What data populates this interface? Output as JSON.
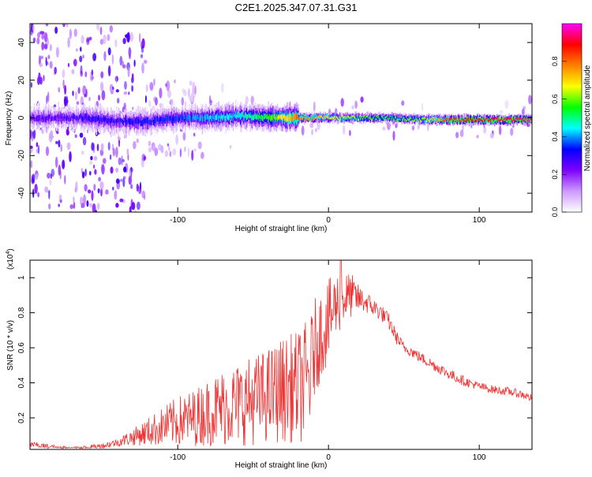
{
  "title": "C2E1.2025.347.07.31.G31",
  "chart_data": [
    {
      "type": "heatmap",
      "xlabel": "Height of straight line (km)",
      "ylabel": "Frequency (Hz)",
      "xlim": [
        -198,
        135
      ],
      "ylim": [
        -50,
        50
      ],
      "xticks": [
        -100,
        0,
        100
      ],
      "yticks": [
        -40,
        -20,
        0,
        20,
        40
      ],
      "colorbar": {
        "label": "Normalized spectral amplitude",
        "ticks": [
          "0.0",
          "0.2",
          "0.4",
          "0.6",
          "0.8"
        ],
        "range": [
          0,
          1
        ],
        "colors": [
          "#ffffff",
          "#cc99ff",
          "#7f00ff",
          "#0000ff",
          "#00ffff",
          "#00ff00",
          "#ffff00",
          "#ff8000",
          "#ff0000",
          "#ff00ff"
        ]
      },
      "ridge": {
        "x": [
          -198,
          -180,
          -160,
          -140,
          -120,
          -100,
          -80,
          -60,
          -40,
          -20,
          0,
          20,
          40,
          60,
          80,
          100,
          120,
          135
        ],
        "frequency": [
          0,
          0,
          0,
          -2,
          -2,
          0,
          0,
          1,
          0,
          0,
          0,
          0,
          0,
          -1,
          -1,
          -1,
          -1,
          -1
        ],
        "amplitude": [
          0.25,
          0.25,
          0.3,
          0.3,
          0.32,
          0.36,
          0.42,
          0.45,
          0.55,
          0.8,
          0.7,
          0.6,
          0.55,
          0.62,
          0.85,
          0.9,
          0.95,
          0.95
        ]
      }
    },
    {
      "type": "line",
      "xlabel": "Height of straight line (km)",
      "ylabel": "SNR (10 * v/v)",
      "yscale_label": "(x10",
      "yscale_exp": "4",
      "xlim": [
        -198,
        135
      ],
      "ylim": [
        0.02,
        1.1
      ],
      "xticks": [
        -100,
        0,
        100
      ],
      "yticks": [
        0.2,
        0.4,
        0.6,
        0.8,
        1
      ],
      "color": "#ee3333",
      "envelope": {
        "x": [
          -198,
          -190,
          -180,
          -170,
          -160,
          -150,
          -140,
          -130,
          -120,
          -110,
          -100,
          -90,
          -80,
          -70,
          -60,
          -50,
          -40,
          -30,
          -20,
          -15,
          -12,
          -10,
          -5,
          0,
          5,
          10,
          15,
          20,
          25,
          30,
          35,
          40,
          45,
          50,
          55,
          60,
          70,
          80,
          90,
          100,
          110,
          120,
          130,
          135
        ],
        "value": [
          0.05,
          0.04,
          0.03,
          0.025,
          0.03,
          0.04,
          0.06,
          0.09,
          0.12,
          0.15,
          0.18,
          0.2,
          0.23,
          0.26,
          0.28,
          0.3,
          0.33,
          0.36,
          0.38,
          0.4,
          0.45,
          0.58,
          0.68,
          0.75,
          0.85,
          0.88,
          0.9,
          0.88,
          0.86,
          0.83,
          0.8,
          0.75,
          0.66,
          0.6,
          0.58,
          0.55,
          0.5,
          0.45,
          0.41,
          0.38,
          0.36,
          0.35,
          0.33,
          0.31
        ],
        "noise": [
          0.01,
          0.01,
          0.008,
          0.006,
          0.008,
          0.01,
          0.015,
          0.03,
          0.05,
          0.07,
          0.09,
          0.1,
          0.12,
          0.14,
          0.15,
          0.16,
          0.17,
          0.19,
          0.2,
          0.22,
          0.2,
          0.18,
          0.16,
          0.15,
          0.12,
          0.1,
          0.08,
          0.05,
          0.04,
          0.035,
          0.03,
          0.03,
          0.025,
          0.02,
          0.02,
          0.02,
          0.02,
          0.02,
          0.018,
          0.015,
          0.015,
          0.015,
          0.015,
          0.015
        ]
      },
      "peak": {
        "x": 8,
        "value": 1.1
      }
    }
  ]
}
